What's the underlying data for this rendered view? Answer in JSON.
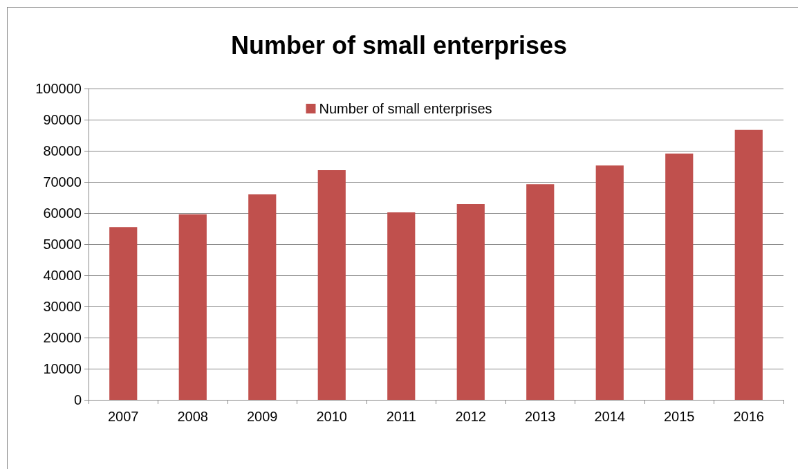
{
  "chart_data": {
    "type": "bar",
    "title": "Number of small enterprises",
    "categories": [
      "2007",
      "2008",
      "2009",
      "2010",
      "2011",
      "2012",
      "2013",
      "2014",
      "2015",
      "2016"
    ],
    "series": [
      {
        "name": "Number of small enterprises",
        "color": "#c0504d",
        "values": [
          55500,
          59600,
          66000,
          73800,
          60200,
          62900,
          69300,
          75300,
          79100,
          86700
        ]
      }
    ],
    "ylim": [
      0,
      100000
    ],
    "yticks": [
      0,
      10000,
      20000,
      30000,
      40000,
      50000,
      60000,
      70000,
      80000,
      90000,
      100000
    ],
    "grid": "y",
    "legend": "top"
  }
}
